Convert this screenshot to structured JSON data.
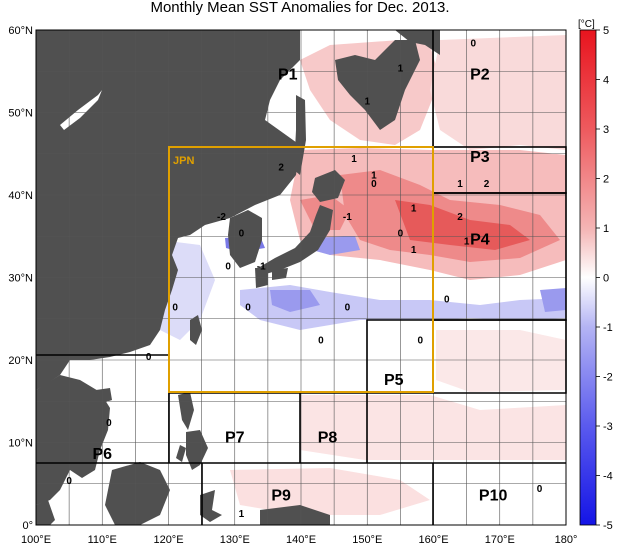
{
  "title": "Monthly Mean SST Anomalies for Dec. 2013.",
  "colorbar": {
    "unit": "[°C]",
    "ticks": [
      5,
      4,
      3,
      2,
      1,
      0,
      -1,
      -2,
      -3,
      -4,
      -5
    ],
    "colors": {
      "warm_max": "#e8141e",
      "cold_max": "#1414e6",
      "neutral": "#ffffff"
    }
  },
  "axes": {
    "lon_labels": [
      "100°E",
      "110°E",
      "120°E",
      "130°E",
      "140°E",
      "150°E",
      "160°E",
      "170°E",
      "180°"
    ],
    "lat_labels": [
      "60°N",
      "50°N",
      "40°N",
      "30°N",
      "20°N",
      "10°N",
      "0°"
    ],
    "lon_range": [
      100,
      180
    ],
    "lat_range": [
      0,
      60
    ]
  },
  "land_color": "#505050",
  "regions": [
    {
      "name": "P1",
      "lon": 138,
      "lat": 54
    },
    {
      "name": "P2",
      "lon": 167,
      "lat": 54
    },
    {
      "name": "P3",
      "lon": 167,
      "lat": 44
    },
    {
      "name": "P4",
      "lon": 167,
      "lat": 34
    },
    {
      "name": "P5",
      "lon": 154,
      "lat": 17
    },
    {
      "name": "P6",
      "lon": 110,
      "lat": 8
    },
    {
      "name": "P7",
      "lon": 130,
      "lat": 10
    },
    {
      "name": "P8",
      "lon": 144,
      "lat": 10
    },
    {
      "name": "P9",
      "lon": 137,
      "lat": 3
    },
    {
      "name": "P10",
      "lon": 169,
      "lat": 3
    }
  ],
  "jpn_box": {
    "label": "JPN",
    "color": "#e0a000"
  },
  "contour_labels": [
    {
      "text": "0",
      "lon": 166,
      "lat": 58
    },
    {
      "text": "1",
      "lon": 155,
      "lat": 55
    },
    {
      "text": "1",
      "lon": 150,
      "lat": 51
    },
    {
      "text": "2",
      "lon": 137,
      "lat": 43
    },
    {
      "text": "1",
      "lon": 148,
      "lat": 44
    },
    {
      "text": "1",
      "lon": 151,
      "lat": 42
    },
    {
      "text": "0",
      "lon": 151,
      "lat": 41
    },
    {
      "text": "1",
      "lon": 157,
      "lat": 38
    },
    {
      "text": "1",
      "lon": 164,
      "lat": 41
    },
    {
      "text": "2",
      "lon": 168,
      "lat": 41
    },
    {
      "text": "2",
      "lon": 164,
      "lat": 37
    },
    {
      "text": "1",
      "lon": 165,
      "lat": 34
    },
    {
      "text": "-2",
      "lon": 128,
      "lat": 37
    },
    {
      "text": "0",
      "lon": 131,
      "lat": 35
    },
    {
      "text": "-1",
      "lon": 147,
      "lat": 37
    },
    {
      "text": "0",
      "lon": 155,
      "lat": 35
    },
    {
      "text": "1",
      "lon": 157,
      "lat": 33
    },
    {
      "text": "0",
      "lon": 129,
      "lat": 31
    },
    {
      "text": "-1",
      "lon": 134,
      "lat": 31
    },
    {
      "text": "0",
      "lon": 162,
      "lat": 27
    },
    {
      "text": "0",
      "lon": 121,
      "lat": 26
    },
    {
      "text": "0",
      "lon": 132,
      "lat": 26
    },
    {
      "text": "0",
      "lon": 147,
      "lat": 26
    },
    {
      "text": "0",
      "lon": 143,
      "lat": 22
    },
    {
      "text": "0",
      "lon": 158,
      "lat": 22
    },
    {
      "text": "0",
      "lon": 117,
      "lat": 20
    },
    {
      "text": "0",
      "lon": 111,
      "lat": 12
    },
    {
      "text": "0",
      "lon": 105,
      "lat": 5
    },
    {
      "text": "1",
      "lon": 131,
      "lat": 1
    },
    {
      "text": "0",
      "lon": 176,
      "lat": 4
    }
  ]
}
